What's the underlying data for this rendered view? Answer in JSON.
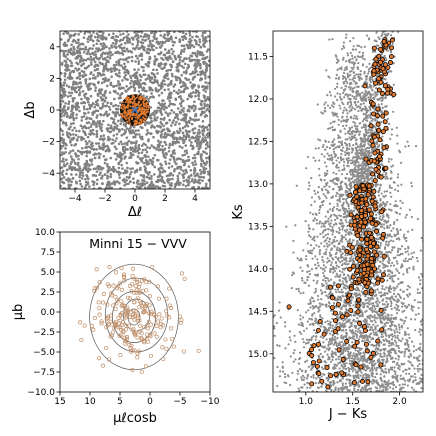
{
  "chart_data": [
    {
      "type": "scatter",
      "panel": "sky position",
      "xlabel": "Δℓ",
      "ylabel": "Δb",
      "xlim": [
        -5,
        5
      ],
      "ylim": [
        -5,
        5
      ],
      "xticks": [
        "−4",
        "−2",
        "0",
        "2",
        "4"
      ],
      "xtick_values": [
        -4,
        -2,
        0,
        2,
        4
      ],
      "yticks": [
        "−4",
        "−2",
        "0",
        "2",
        "4"
      ],
      "ytick_values": [
        -4,
        -2,
        0,
        2,
        4
      ],
      "series": [
        {
          "role": "field",
          "color": "#808080",
          "distribution": "uniform",
          "x_range": [
            -5,
            5
          ],
          "y_range": [
            -5,
            5
          ]
        },
        {
          "role": "members",
          "color": "#e07b30",
          "edge": "#000000",
          "center": [
            0,
            0
          ],
          "radius": 1
        },
        {
          "role": "center",
          "color": "#3a7dd8",
          "marker": "x",
          "x": 0,
          "y": 0
        }
      ],
      "grid": false
    },
    {
      "type": "scatter",
      "panel": "proper motion",
      "title": "Minni 15 − VVV",
      "xlabel": "μℓcosb",
      "ylabel": "μb",
      "xlim": [
        15,
        -10
      ],
      "ylim": [
        -10,
        10
      ],
      "xticks": [
        "15",
        "10",
        "5",
        "0",
        "−5",
        "−10"
      ],
      "xtick_values": [
        15,
        10,
        5,
        0,
        -5,
        -10
      ],
      "yticks": [
        "−10.0",
        "−7.5",
        "−5.0",
        "−2.5",
        "0.0",
        "2.5",
        "5.0",
        "7.5",
        "10.0"
      ],
      "ytick_values": [
        -10,
        -7.5,
        -5,
        -2.5,
        0,
        2.5,
        5,
        7.5,
        10
      ],
      "center": [
        2.5,
        -0.5
      ],
      "contours": [
        {
          "rx": 1.0,
          "ry": 1.0
        },
        {
          "rx": 2.2,
          "ry": 2.0
        },
        {
          "rx": 3.6,
          "ry": 3.2
        },
        {
          "rx": 5.2,
          "ry": 4.6
        },
        {
          "rx": 7.4,
          "ry": 6.6
        }
      ],
      "series": [
        {
          "role": "members",
          "color": "#e8a070",
          "edge": "#c0906a",
          "marker": "open-circle"
        }
      ],
      "grid": false
    },
    {
      "type": "scatter",
      "panel": "CMD",
      "xlabel": "J − Ks",
      "ylabel": "Ks",
      "xlim": [
        0.65,
        2.25
      ],
      "ylim": [
        15.45,
        11.2
      ],
      "xticks": [
        "1.0",
        "1.5",
        "2.0"
      ],
      "xtick_values": [
        1.0,
        1.5,
        2.0
      ],
      "yticks": [
        "11.5",
        "12.0",
        "12.5",
        "13.0",
        "13.5",
        "14.0",
        "14.5",
        "15.0"
      ],
      "ytick_values": [
        11.5,
        12.0,
        12.5,
        13.0,
        13.5,
        14.0,
        14.5,
        15.0
      ],
      "series": [
        {
          "role": "field",
          "color": "#8c8c8c"
        },
        {
          "role": "members",
          "color": "#e07b30",
          "edge": "#000000"
        }
      ],
      "grid": false
    }
  ]
}
